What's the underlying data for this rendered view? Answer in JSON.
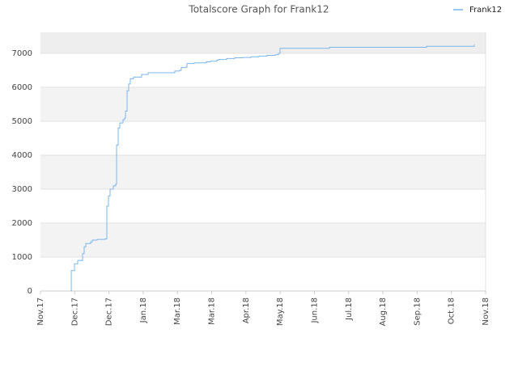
{
  "chart_data": {
    "type": "line",
    "title": "Totalscore Graph for Frank12",
    "series": [
      {
        "name": "Frank12",
        "color": "#7cb5ec",
        "step": true,
        "x": [
          0.898,
          0.9,
          0.993,
          1.087,
          1.182,
          1.229,
          1.276,
          1.324,
          1.465,
          1.513,
          1.654,
          1.891,
          1.938,
          1.985,
          2.033,
          2.127,
          2.198,
          2.222,
          2.269,
          2.316,
          2.411,
          2.458,
          2.482,
          2.529,
          2.576,
          2.623,
          2.718,
          2.954,
          3.143,
          3.876,
          3.923,
          4.065,
          4.112,
          4.254,
          4.278,
          4.491,
          4.845,
          4.963,
          5.152,
          5.2,
          5.436,
          5.672,
          5.909,
          6.145,
          6.381,
          6.618,
          6.854,
          6.949,
          6.996,
          8.39,
          8.438,
          11.227,
          11.274,
          12.645,
          12.668
        ],
        "values": [
          0,
          600,
          800,
          900,
          900,
          1100,
          1300,
          1400,
          1450,
          1500,
          1520,
          1540,
          2500,
          2800,
          3000,
          3100,
          3150,
          4300,
          4800,
          4950,
          5050,
          5100,
          5300,
          5900,
          6100,
          6250,
          6300,
          6380,
          6430,
          6430,
          6480,
          6500,
          6580,
          6600,
          6700,
          6720,
          6750,
          6770,
          6800,
          6820,
          6850,
          6870,
          6880,
          6900,
          6920,
          6940,
          6960,
          7000,
          7150,
          7150,
          7180,
          7180,
          7210,
          7210,
          7260
        ]
      }
    ],
    "xlim": [
      0,
      13
    ],
    "xticks": [
      {
        "value": 0,
        "label": "Nov.17"
      },
      {
        "value": 1,
        "label": "Dec.17"
      },
      {
        "value": 2,
        "label": "Dec.17"
      },
      {
        "value": 3,
        "label": "Jan.18"
      },
      {
        "value": 4,
        "label": "Mar.18"
      },
      {
        "value": 5,
        "label": "Mar.18"
      },
      {
        "value": 6,
        "label": "Apr.18"
      },
      {
        "value": 7,
        "label": "May.18"
      },
      {
        "value": 8,
        "label": "Jun.18"
      },
      {
        "value": 9,
        "label": "Jul.18"
      },
      {
        "value": 10,
        "label": "Aug.18"
      },
      {
        "value": 11,
        "label": "Sep.18"
      },
      {
        "value": 12,
        "label": "Oct.18"
      },
      {
        "value": 13,
        "label": "Nov.18"
      }
    ],
    "ylim": [
      0,
      7620
    ],
    "yticks": [
      0,
      1000,
      2000,
      3000,
      4000,
      5000,
      6000,
      7000
    ],
    "grid": true,
    "bands": true,
    "legend": "top-right"
  }
}
